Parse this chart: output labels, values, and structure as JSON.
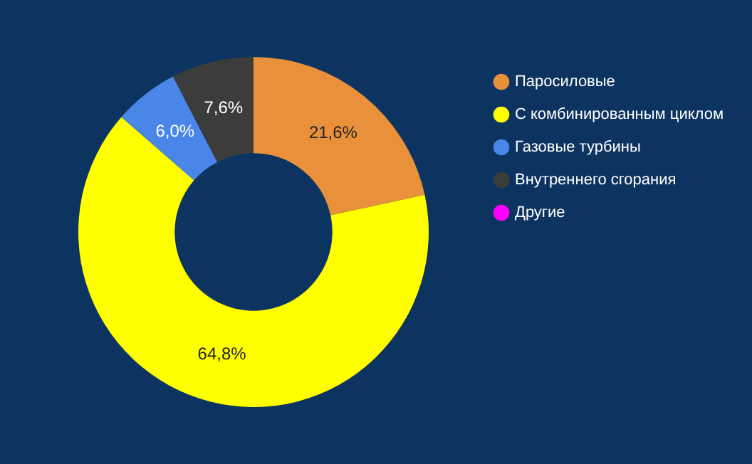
{
  "chart_data": {
    "type": "donut",
    "categories": [
      "Паросиловые",
      "С комбинированным циклом",
      "Газовые турбины",
      "Внутреннего сгорания",
      "Другие"
    ],
    "values": [
      21.6,
      64.8,
      6.0,
      7.6,
      0
    ],
    "colors": [
      "#e8913a",
      "#ffff00",
      "#4a86e8",
      "#3c3c3c",
      "#ff00ff"
    ],
    "value_labels": [
      "21,6%",
      "64,8%",
      "6,0%",
      "7,6%",
      null
    ],
    "legend": "right"
  }
}
